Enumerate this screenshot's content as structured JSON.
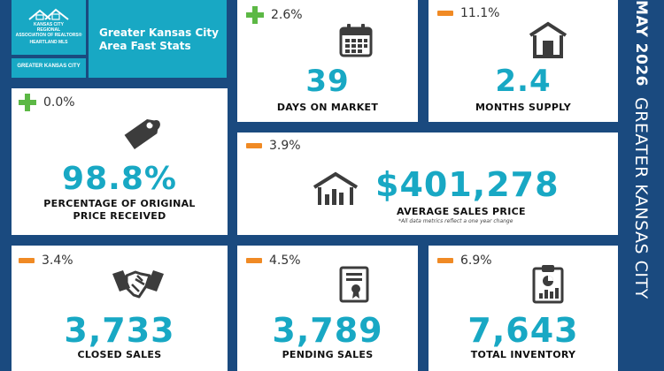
{
  "logo": {
    "line1": "KANSAS CITY",
    "line2": "REGIONAL",
    "line3": "ASSOCIATION OF REALTORS®",
    "line4": "HEARTLAND MLS"
  },
  "region_tag": "GREATER KANSAS CITY",
  "header_title": "Greater Kansas City Area Fast Stats",
  "sidebar": {
    "date": "MAY 2026",
    "region": "GREATER KANSAS CITY"
  },
  "colors": {
    "background": "#1a4a7f",
    "accent_teal": "#18a8c4",
    "increase_green": "#5cb845",
    "decrease_orange": "#f08a24"
  },
  "stats": {
    "days_on_market": {
      "change": "2.6%",
      "change_icon": "plus-icon",
      "value": "39",
      "label": "DAYS ON MARKET",
      "icon": "calendar-icon"
    },
    "months_supply": {
      "change": "11.1%",
      "change_icon": "minus-icon",
      "value": "2.4",
      "label": "MONTHS SUPPLY",
      "icon": "garage-icon"
    },
    "pct_original": {
      "change": "0.0%",
      "change_icon": "plus-icon",
      "value": "98.8%",
      "label_line1": "PERCENTAGE OF ORIGINAL",
      "label_line2": "PRICE RECEIVED",
      "icon": "price-tag-icon"
    },
    "avg_price": {
      "change": "3.9%",
      "change_icon": "minus-icon",
      "value": "$401,278",
      "label": "AVERAGE SALES PRICE",
      "note": "*All data metrics reflect a one year change",
      "icon": "house-chart-icon"
    },
    "closed_sales": {
      "change": "3.4%",
      "change_icon": "minus-icon",
      "value": "3,733",
      "label": "CLOSED SALES",
      "icon": "handshake-icon"
    },
    "pending_sales": {
      "change": "4.5%",
      "change_icon": "minus-icon",
      "value": "3,789",
      "label": "PENDING SALES",
      "icon": "certificate-icon"
    },
    "total_inventory": {
      "change": "6.9%",
      "change_icon": "minus-icon",
      "value": "7,643",
      "label": "TOTAL INVENTORY",
      "icon": "clipboard-chart-icon"
    }
  }
}
